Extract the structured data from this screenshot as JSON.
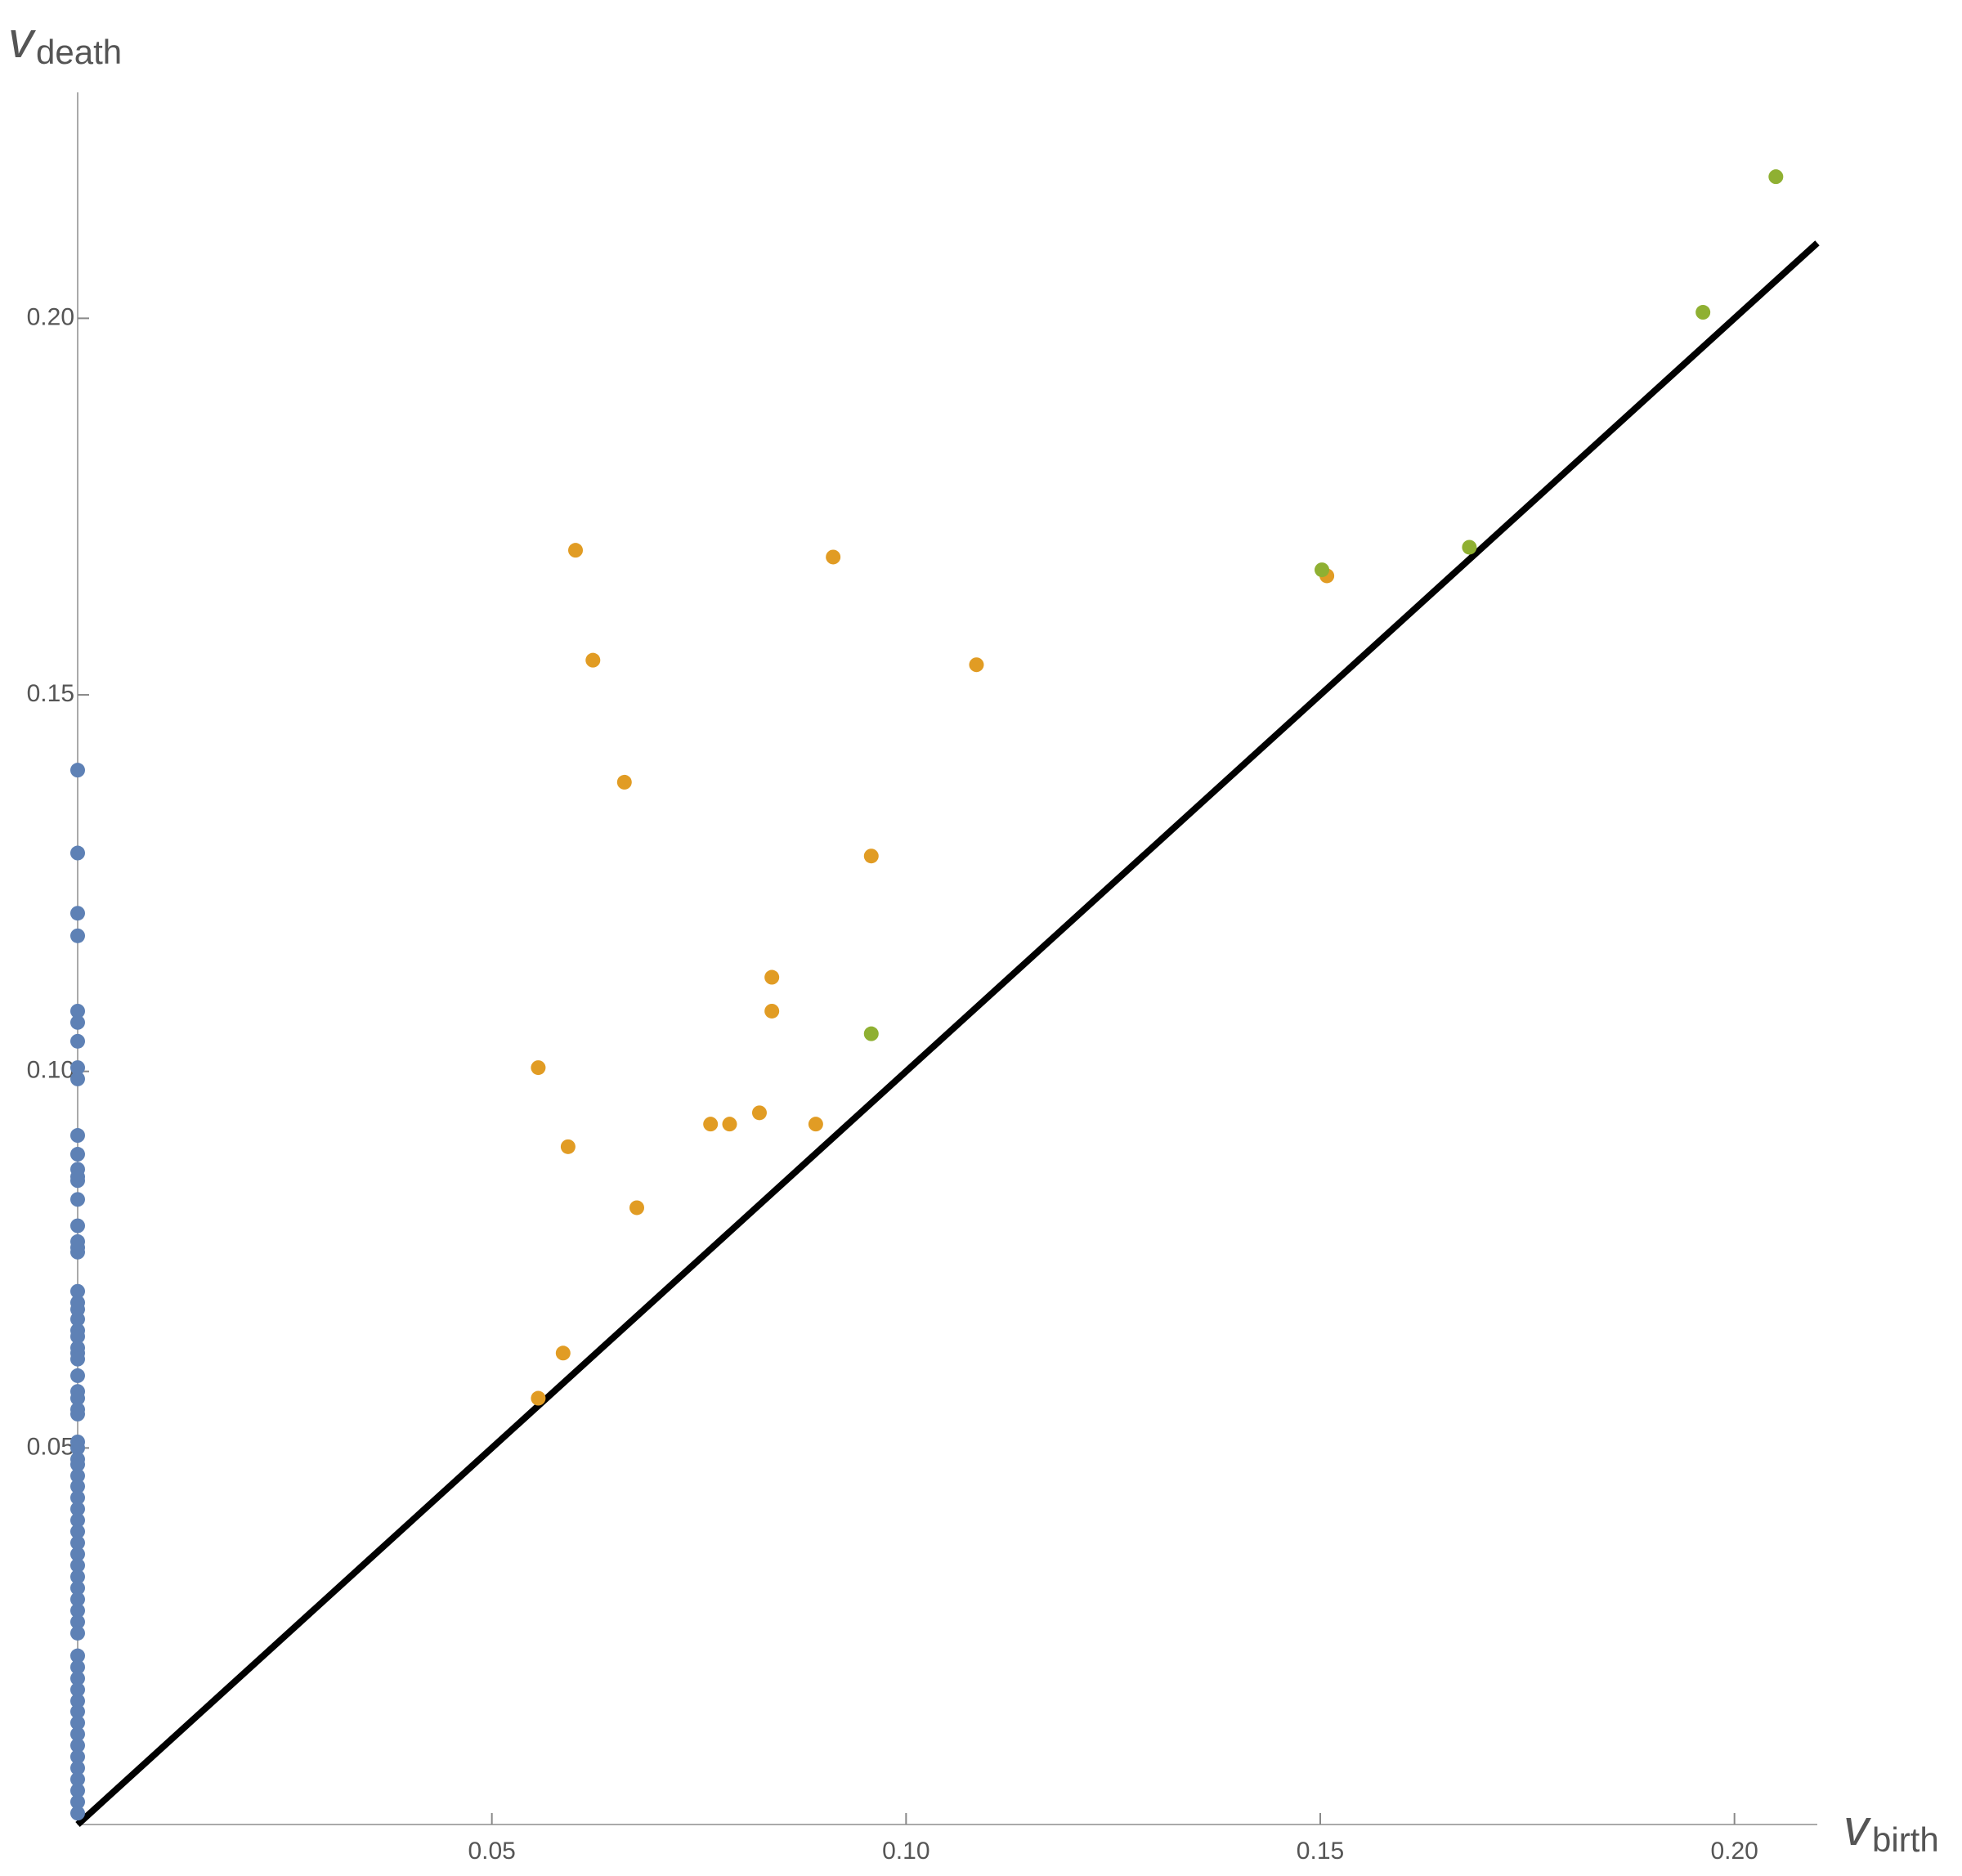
{
  "chart_data": {
    "type": "scatter",
    "x_label": {
      "symbol": "v",
      "subscript": "birth"
    },
    "y_label": {
      "symbol": "v",
      "subscript": "death"
    },
    "xlim": [
      0,
      0.21
    ],
    "ylim": [
      0,
      0.23
    ],
    "xticks": [
      0.05,
      {
        "value": 0.1,
        "label": "0.10"
      },
      0.15,
      {
        "value": 0.2,
        "label": "0.20"
      }
    ],
    "yticks": [
      0.05,
      {
        "value": 0.1,
        "label": "0.10"
      },
      0.15,
      {
        "value": 0.2,
        "label": "0.20"
      }
    ],
    "grid": false,
    "reference_line": {
      "x": [
        0,
        0.21
      ],
      "y": [
        0,
        0.21
      ],
      "color": "#000000"
    },
    "series": [
      {
        "color": "#5e81b5",
        "x": [
          0,
          0,
          0,
          0,
          0,
          0,
          0,
          0,
          0,
          0,
          0,
          0,
          0,
          0,
          0,
          0,
          0,
          0,
          0,
          0,
          0,
          0,
          0,
          0,
          0,
          0,
          0,
          0,
          0,
          0,
          0,
          0,
          0,
          0,
          0,
          0,
          0,
          0,
          0,
          0,
          0,
          0,
          0,
          0,
          0,
          0,
          0,
          0,
          0,
          0,
          0,
          0,
          0,
          0,
          0,
          0,
          0,
          0,
          0,
          0,
          0,
          0,
          0,
          0,
          0,
          0,
          0
        ],
        "y": [
          0.14,
          0.129,
          0.121,
          0.118,
          0.108,
          0.1065,
          0.104,
          0.1005,
          0.099,
          0.0915,
          0.089,
          0.087,
          0.086,
          0.0855,
          0.083,
          0.0795,
          0.0774,
          0.0766,
          0.076,
          0.0708,
          0.0693,
          0.0684,
          0.0671,
          0.0656,
          0.0648,
          0.0633,
          0.0626,
          0.0618,
          0.0596,
          0.0575,
          0.0566,
          0.0551,
          0.0545,
          0.0508,
          0.05,
          0.0485,
          0.0478,
          0.0463,
          0.0449,
          0.0434,
          0.0419,
          0.0404,
          0.0389,
          0.0374,
          0.0359,
          0.0344,
          0.0329,
          0.0314,
          0.0299,
          0.0284,
          0.0269,
          0.0254,
          0.0224,
          0.0209,
          0.0194,
          0.0179,
          0.0164,
          0.015,
          0.0135,
          0.012,
          0.0105,
          0.009,
          0.0075,
          0.006,
          0.0045,
          0.003,
          0.0015
        ]
      },
      {
        "color": "#e19c24",
        "x": [
          0.0601,
          0.0912,
          0.0622,
          0.1085,
          0.066,
          0.0958,
          0.0838,
          0.0838,
          0.0556,
          0.0592,
          0.0764,
          0.0787,
          0.0823,
          0.0891,
          0.0675,
          0.0586,
          0.0556,
          0.1508
        ],
        "y": [
          0.1692,
          0.1683,
          0.1546,
          0.154,
          0.1384,
          0.1286,
          0.1125,
          0.108,
          0.1005,
          0.09,
          0.093,
          0.093,
          0.0945,
          0.093,
          0.0819,
          0.0626,
          0.0566,
          0.1658
        ]
      },
      {
        "color": "#8fb032",
        "x": [
          0.205,
          0.1962,
          0.168,
          0.1502,
          0.0958
        ],
        "y": [
          0.2188,
          0.2008,
          0.1696,
          0.1666,
          0.105
        ]
      }
    ]
  }
}
